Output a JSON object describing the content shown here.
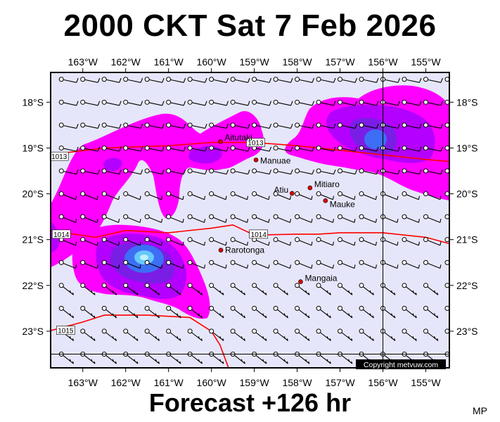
{
  "title": "2000 CKT Sat 7 Feb 2026",
  "forecast": "Forecast +126 hr",
  "corner_tag": "MP",
  "copyright": "Copyright metvuw.com",
  "lon_labels": [
    "163°W",
    "162°W",
    "161°W",
    "160°W",
    "159°W",
    "158°W",
    "157°W",
    "156°W",
    "155°W"
  ],
  "lat_labels": [
    "18°S",
    "19°S",
    "20°S",
    "21°S",
    "22°S",
    "23°S"
  ],
  "places": [
    {
      "name": "Aitutaki",
      "lon": -159.79,
      "lat": -18.86
    },
    {
      "name": "Manuae",
      "lon": -158.96,
      "lat": -19.26
    },
    {
      "name": "Atiu",
      "lon": -158.12,
      "lat": -19.99
    },
    {
      "name": "Mitiaro",
      "lon": -157.7,
      "lat": -19.87
    },
    {
      "name": "Mauke",
      "lon": -157.34,
      "lat": -20.15
    },
    {
      "name": "Rarotonga",
      "lon": -159.78,
      "lat": -21.23
    },
    {
      "name": "Mangaia",
      "lon": -157.92,
      "lat": -21.92
    }
  ],
  "isobars": [
    {
      "label": "1013",
      "points": [
        [
          -163.8,
          -19.15
        ],
        [
          -162.5,
          -19.0
        ],
        [
          -161.0,
          -18.95
        ],
        [
          -160.0,
          -18.88
        ],
        [
          -159.0,
          -18.88
        ],
        [
          -158.0,
          -18.95
        ],
        [
          -157.0,
          -19.05
        ],
        [
          -156.0,
          -19.15
        ],
        [
          -155.0,
          -19.25
        ],
        [
          -154.4,
          -19.3
        ]
      ]
    },
    {
      "label": "1014",
      "points": [
        [
          -163.8,
          -20.8
        ],
        [
          -162.7,
          -20.95
        ],
        [
          -162.0,
          -20.8
        ],
        [
          -161.0,
          -20.85
        ],
        [
          -160.0,
          -20.75
        ],
        [
          -159.5,
          -20.68
        ],
        [
          -159.0,
          -20.9
        ],
        [
          -158.0,
          -20.88
        ],
        [
          -157.5,
          -20.88
        ],
        [
          -157.0,
          -20.85
        ],
        [
          -156.0,
          -20.85
        ],
        [
          -155.0,
          -20.95
        ],
        [
          -154.4,
          -21.1
        ]
      ]
    },
    {
      "label": "1015",
      "points": [
        [
          -163.8,
          -23.0
        ],
        [
          -163.0,
          -22.8
        ],
        [
          -162.5,
          -22.65
        ],
        [
          -161.5,
          -22.65
        ],
        [
          -160.5,
          -22.7
        ],
        [
          -160.0,
          -23.0
        ],
        [
          -159.8,
          -23.3
        ],
        [
          -159.6,
          -23.8
        ]
      ]
    }
  ],
  "colors": {
    "background": "#e6e6fa",
    "rain_light": "#ff00ff",
    "rain_medium": "#b400ff",
    "rain_heavy": "#7a1ee6",
    "rain_core": "#3d6ef5",
    "rain_peak": "#66c8ff",
    "isobar": "#ff0000",
    "place_dot": "#dd0000"
  },
  "map_extent": {
    "lon_min": -163.75,
    "lon_max": -154.45,
    "lat_min": -23.8,
    "lat_max": -17.35
  }
}
